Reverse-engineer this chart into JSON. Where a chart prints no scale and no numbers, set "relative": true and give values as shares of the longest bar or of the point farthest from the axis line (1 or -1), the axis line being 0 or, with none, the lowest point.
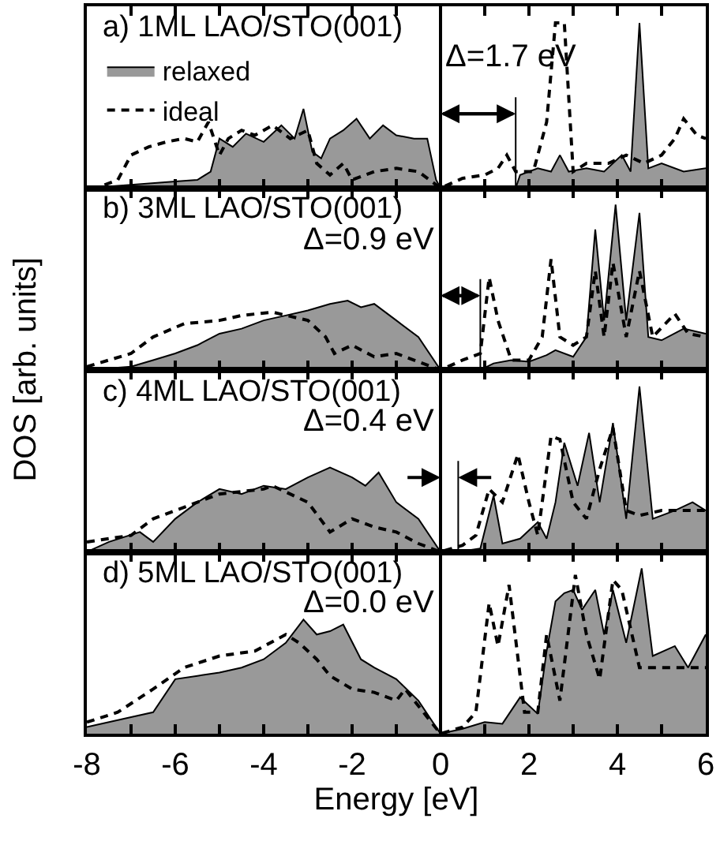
{
  "chart_data": [
    {
      "type": "line",
      "title": "a) 1ML LAO/STO(001)",
      "ylabel": "DOS [arb. units]",
      "relative": true,
      "legend": "top left",
      "grid": false,
      "tick_labels": false,
      "annotations": [
        "Δ=1.7 eV"
      ],
      "xlim": [
        -8,
        6
      ],
      "xticks": [
        -8,
        {
          "value": -7,
          "label": null
        },
        -6,
        {
          "value": -5,
          "label": null
        },
        -4,
        {
          "value": -3,
          "label": null
        },
        -2,
        {
          "value": -1,
          "label": null
        },
        0,
        {
          "value": 1,
          "label": null
        },
        2,
        {
          "value": 3,
          "label": null
        },
        4,
        {
          "value": 5,
          "label": null
        },
        6
      ],
      "ref_lines": [
        {
          "axis": "x",
          "value": 0,
          "color": "#000000"
        },
        {
          "axis": "x",
          "value": 1.7,
          "color": "#000000"
        }
      ],
      "series": [
        {
          "name": "relaxed",
          "type": "area",
          "line_style": "solid",
          "color": "#999999",
          "x": [
            -8,
            -7,
            -6,
            -5.5,
            -5.2,
            -5,
            -4.7,
            -4.4,
            -4,
            -3.6,
            -3.3,
            -3.1,
            -2.9,
            -2.7,
            -2.5,
            -2.2,
            -1.9,
            -1.6,
            -1.3,
            -1,
            -0.6,
            -0.3,
            -0.1,
            0,
            1,
            1.7,
            1.8,
            2.2,
            2.5,
            2.7,
            2.9,
            3.3,
            3.7,
            4.1,
            4.3,
            4.5,
            4.7,
            5,
            5.5,
            6
          ],
          "values": [
            0,
            0.02,
            0.04,
            0.05,
            0.1,
            0.3,
            0.25,
            0.33,
            0.28,
            0.38,
            0.3,
            0.48,
            0.22,
            0.18,
            0.3,
            0.35,
            0.42,
            0.3,
            0.38,
            0.32,
            0.3,
            0.3,
            0.05,
            0,
            0,
            0,
            0.08,
            0.12,
            0.1,
            0.2,
            0.1,
            0.12,
            0.1,
            0.2,
            0.1,
            1,
            0.12,
            0.15,
            0.1,
            0.12
          ]
        },
        {
          "name": "ideal",
          "type": "line",
          "line_style": "dashed",
          "color": "#000000",
          "x": [
            -7.6,
            -7.3,
            -7,
            -6.6,
            -6.2,
            -5.8,
            -5.5,
            -5.25,
            -5,
            -4.8,
            -4.5,
            -4.2,
            -3.8,
            -3.4,
            -3,
            -2.8,
            -2.5,
            -2.2,
            -2,
            -1.5,
            -1,
            -0.5,
            0,
            0.5,
            1,
            1.3,
            1.5,
            1.7,
            2.1,
            2.4,
            2.6,
            2.8,
            3,
            3.3,
            3.8,
            4.2,
            4.6,
            5,
            5.3,
            5.5,
            5.8,
            6
          ],
          "values": [
            0.02,
            0.05,
            0.2,
            0.25,
            0.28,
            0.3,
            0.28,
            0.4,
            0.2,
            0.3,
            0.35,
            0.32,
            0.38,
            0.3,
            0.35,
            0.15,
            0.08,
            0.15,
            0.05,
            0.1,
            0.12,
            0.1,
            0,
            0.06,
            0.08,
            0.12,
            0.2,
            0.1,
            0.1,
            0.4,
            1,
            1,
            0.1,
            0.15,
            0.15,
            0.2,
            0.15,
            0.2,
            0.3,
            0.42,
            0.32,
            0.3
          ]
        }
      ]
    },
    {
      "type": "line",
      "title": "b) 3ML LAO/STO(001)",
      "relative": true,
      "grid": false,
      "tick_labels": false,
      "annotations": [
        "Δ=0.9 eV"
      ],
      "xlim": [
        -8,
        6
      ],
      "xticks": [
        -8,
        {
          "value": -7,
          "label": null
        },
        -6,
        {
          "value": -5,
          "label": null
        },
        -4,
        {
          "value": -3,
          "label": null
        },
        -2,
        {
          "value": -1,
          "label": null
        },
        0,
        {
          "value": 1,
          "label": null
        },
        2,
        {
          "value": 3,
          "label": null
        },
        4,
        {
          "value": 5,
          "label": null
        },
        6
      ],
      "ref_lines": [
        {
          "axis": "x",
          "value": 0,
          "color": "#000000"
        },
        {
          "axis": "x",
          "value": 0.9,
          "color": "#000000"
        }
      ],
      "series": [
        {
          "type": "area",
          "line_style": "solid",
          "color": "#999999",
          "x": [
            -8,
            -7,
            -6.5,
            -6,
            -5.5,
            -5,
            -4.5,
            -4,
            -3.5,
            -3,
            -2.5,
            -2.1,
            -1.8,
            -1.5,
            -1,
            -0.5,
            0,
            0.9,
            1.2,
            1.6,
            2,
            2.4,
            2.6,
            3,
            3.3,
            3.5,
            3.7,
            3.96,
            4.2,
            4.5,
            4.7,
            5,
            5.5,
            6
          ],
          "values": [
            0,
            0.02,
            0.06,
            0.1,
            0.15,
            0.22,
            0.25,
            0.3,
            0.33,
            0.36,
            0.4,
            0.42,
            0.38,
            0.4,
            0.3,
            0.2,
            0,
            0,
            0.04,
            0.06,
            0.05,
            0.09,
            0.12,
            0.08,
            0.2,
            0.85,
            0.3,
            1,
            0.3,
            0.95,
            0.2,
            0.18,
            0.25,
            0.22
          ]
        },
        {
          "type": "line",
          "line_style": "dashed",
          "color": "#000000",
          "x": [
            -8,
            -7,
            -6.5,
            -5.8,
            -5,
            -4.5,
            -3.8,
            -3,
            -2.6,
            -2.4,
            -2,
            -1.5,
            -1,
            -0.5,
            0,
            0.5,
            0.9,
            1.1,
            1.3,
            1.6,
            2,
            2.3,
            2.5,
            2.7,
            3,
            3.3,
            3.5,
            3.7,
            3.9,
            4.2,
            4.5,
            4.8,
            5.3,
            5.6,
            6
          ],
          "values": [
            0.02,
            0.1,
            0.2,
            0.28,
            0.3,
            0.33,
            0.35,
            0.3,
            0.2,
            0.1,
            0.15,
            0.08,
            0.1,
            0.05,
            0,
            0.06,
            0.1,
            0.56,
            0.3,
            0.06,
            0.06,
            0.2,
            0.67,
            0.2,
            0.15,
            0.2,
            0.6,
            0.2,
            0.65,
            0.2,
            0.6,
            0.2,
            0.34,
            0.22,
            0.2
          ]
        }
      ]
    },
    {
      "type": "line",
      "title": "c) 4ML LAO/STO(001)",
      "relative": true,
      "grid": false,
      "tick_labels": false,
      "annotations": [
        "Δ=0.4 eV"
      ],
      "xlim": [
        -8,
        6
      ],
      "xticks": [
        -8,
        {
          "value": -7,
          "label": null
        },
        -6,
        {
          "value": -5,
          "label": null
        },
        -4,
        {
          "value": -3,
          "label": null
        },
        -2,
        {
          "value": -1,
          "label": null
        },
        0,
        {
          "value": 1,
          "label": null
        },
        2,
        {
          "value": 3,
          "label": null
        },
        4,
        {
          "value": 5,
          "label": null
        },
        6
      ],
      "ref_lines": [
        {
          "axis": "x",
          "value": 0,
          "color": "#000000"
        },
        {
          "axis": "x",
          "value": 0.4,
          "color": "#000000"
        }
      ],
      "series": [
        {
          "type": "area",
          "line_style": "solid",
          "color": "#999999",
          "x": [
            -8,
            -7.5,
            -6.8,
            -6.5,
            -6,
            -5.5,
            -5,
            -4.5,
            -4,
            -3.5,
            -3,
            -2.5,
            -2,
            -1.7,
            -1.4,
            -1,
            -0.5,
            0,
            0.4,
            0.9,
            1.2,
            1.4,
            1.8,
            2.2,
            2.4,
            2.6,
            2.8,
            3.1,
            3.36,
            3.6,
            3.9,
            4.2,
            4.5,
            4.8,
            5.3,
            5.7,
            6
          ],
          "values": [
            0,
            0.06,
            0.12,
            0.06,
            0.2,
            0.3,
            0.38,
            0.35,
            0.4,
            0.38,
            0.45,
            0.51,
            0.45,
            0.4,
            0.48,
            0.3,
            0.2,
            0,
            0,
            0.02,
            0.34,
            0.05,
            0.08,
            0.18,
            0.08,
            0.3,
            0.66,
            0.4,
            0.72,
            0.3,
            0.78,
            0.2,
            1,
            0.2,
            0.25,
            0.3,
            0.25
          ]
        },
        {
          "type": "line",
          "line_style": "dashed",
          "color": "#000000",
          "x": [
            -8,
            -7,
            -6.5,
            -5.5,
            -5,
            -4,
            -3.8,
            -3,
            -2.5,
            -2,
            -1.5,
            -1,
            -0.5,
            0,
            0.5,
            0.8,
            1.1,
            1.4,
            1.75,
            2,
            2.2,
            2.5,
            2.7,
            3,
            3.3,
            3.6,
            3.9,
            4.2,
            4.5,
            5,
            5.5,
            6
          ],
          "values": [
            0.06,
            0.1,
            0.2,
            0.3,
            0.35,
            0.38,
            0.4,
            0.3,
            0.12,
            0.2,
            0.15,
            0.12,
            0.05,
            0,
            0.04,
            0.1,
            0.38,
            0.3,
            0.59,
            0.3,
            0.1,
            0.7,
            0.68,
            0.3,
            0.2,
            0.5,
            0.75,
            0.25,
            0.22,
            0.25,
            0.25,
            0.25
          ]
        }
      ]
    },
    {
      "type": "line",
      "title": "d) 5ML LAO/STO(001)",
      "xlabel": "Energy [eV]",
      "relative": true,
      "grid": false,
      "tick_labels": "x",
      "annotations": [
        "Δ=0.0 eV"
      ],
      "xlim": [
        -8,
        6
      ],
      "xticks": [
        -8,
        {
          "value": -7,
          "label": null
        },
        -6,
        {
          "value": -5,
          "label": null
        },
        -4,
        {
          "value": -3,
          "label": null
        },
        -2,
        {
          "value": -1,
          "label": null
        },
        0,
        {
          "value": 1,
          "label": null
        },
        2,
        {
          "value": 3,
          "label": null
        },
        4,
        {
          "value": 5,
          "label": null
        },
        6
      ],
      "ref_lines": [
        {
          "axis": "x",
          "value": 0,
          "color": "#000000"
        }
      ],
      "series": [
        {
          "type": "area",
          "line_style": "solid",
          "color": "#999999",
          "x": [
            -8,
            -7,
            -6.5,
            -6,
            -5.5,
            -5,
            -4.5,
            -4,
            -3.5,
            -3.1,
            -2.8,
            -2.5,
            -2.2,
            -1.8,
            -1.5,
            -1,
            -0.5,
            0,
            0.5,
            1,
            1.4,
            1.8,
            2.2,
            2.4,
            2.6,
            2.8,
            3,
            3.2,
            3.5,
            3.7,
            3.9,
            4.2,
            4.55,
            4.8,
            5.3,
            5.6,
            6
          ],
          "values": [
            0.04,
            0.1,
            0.13,
            0.33,
            0.35,
            0.37,
            0.4,
            0.45,
            0.55,
            0.69,
            0.6,
            0.62,
            0.66,
            0.45,
            0.4,
            0.33,
            0.2,
            0,
            0.03,
            0.07,
            0.06,
            0.22,
            0.12,
            0.5,
            0.8,
            0.85,
            0.87,
            0.75,
            0.87,
            0.6,
            0.87,
            0.55,
            1,
            0.47,
            0.53,
            0.4,
            0.6
          ]
        },
        {
          "type": "line",
          "line_style": "dashed",
          "color": "#000000",
          "x": [
            -8,
            -7.3,
            -6.5,
            -5.8,
            -5,
            -4.2,
            -3.5,
            -3.2,
            -2.8,
            -2.5,
            -2,
            -1.5,
            -1,
            -0.8,
            -0.3,
            0,
            0.5,
            0.8,
            1.1,
            1.3,
            1.55,
            1.9,
            2.2,
            2.4,
            2.7,
            3.05,
            3.3,
            3.6,
            3.9,
            4.1,
            4.5,
            5,
            6
          ],
          "values": [
            0.07,
            0.13,
            0.27,
            0.4,
            0.47,
            0.5,
            0.6,
            0.55,
            0.45,
            0.35,
            0.27,
            0.25,
            0.2,
            0.27,
            0.1,
            0,
            0.04,
            0.13,
            0.79,
            0.53,
            0.9,
            0.13,
            0.13,
            0.6,
            0.2,
            0.96,
            0.6,
            0.33,
            0.93,
            0.87,
            0.4,
            0.4,
            0.4
          ]
        }
      ]
    }
  ]
}
